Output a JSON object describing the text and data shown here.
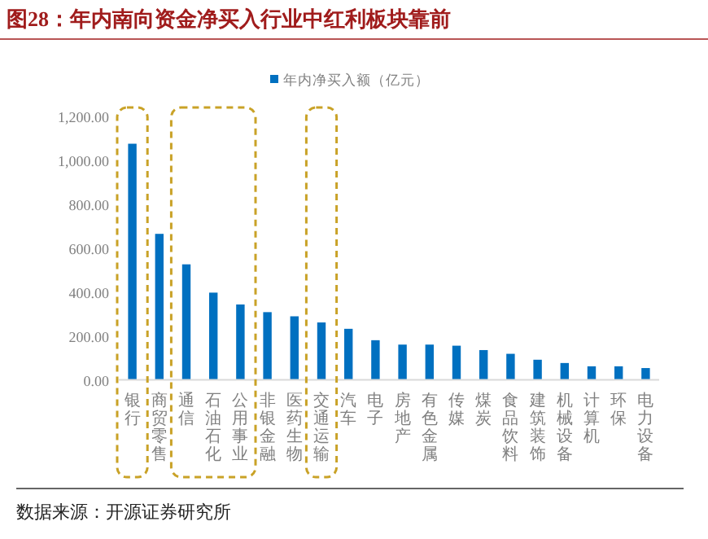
{
  "chart_data": {
    "type": "bar",
    "title": "图28：年内南向资金净买入行业中红利板块靠前",
    "categories": [
      "银行",
      "商贸零售",
      "通信",
      "石油石化",
      "公用事业",
      "非银金融",
      "医药生物",
      "交通运输",
      "汽车",
      "电子",
      "房地产",
      "有色金属",
      "传媒",
      "煤炭",
      "食品饮料",
      "建筑装饰",
      "机械设备",
      "计算机",
      "环保",
      "电力设备"
    ],
    "series": [
      {
        "name": "年内净买入额（亿元）",
        "color": "#0070c0",
        "values": [
          1077,
          666,
          527,
          398,
          344,
          309,
          290,
          262,
          233,
          181,
          161,
          161,
          156,
          136,
          119,
          92,
          77,
          62,
          62,
          54
        ]
      }
    ],
    "ylim": [
      0,
      1200
    ],
    "yticks": [
      {
        "value": 0,
        "label": "0.00"
      },
      {
        "value": 200,
        "label": "200.00"
      },
      {
        "value": 400,
        "label": "400.00"
      },
      {
        "value": 600,
        "label": "600.00"
      },
      {
        "value": 800,
        "label": "800.00"
      },
      {
        "value": 1000,
        "label": "1,000.00"
      },
      {
        "value": 1200,
        "label": "1,200.00"
      }
    ],
    "legend": "top",
    "annotations": [
      "数据来源：开源证券研究所"
    ]
  }
}
